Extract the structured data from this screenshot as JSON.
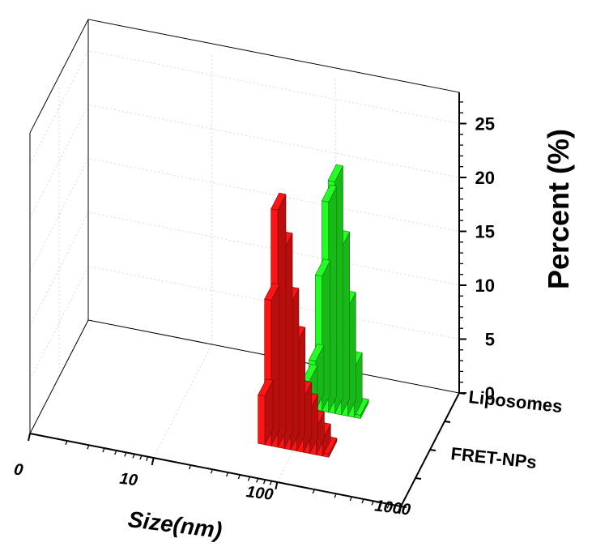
{
  "chart_data": {
    "type": "bar3d",
    "x_axis": {
      "label": "Size(nm)",
      "scale": "log",
      "tick_labels": [
        "0",
        "10",
        "100",
        "1000"
      ],
      "range": [
        1,
        1000
      ]
    },
    "y_axis": {
      "label": "Percent (%)",
      "tick_labels": [
        "0",
        "5",
        "10",
        "15",
        "20",
        "25"
      ],
      "range": [
        0,
        27
      ]
    },
    "z_axis": {
      "tick_labels": [
        "Liposomes",
        "FRET-NPs"
      ]
    },
    "grid": true,
    "series": [
      {
        "name": "FRET-NPs",
        "color": "#ff1414",
        "x": [
          55,
          62,
          70,
          79,
          89,
          100,
          113,
          127,
          143,
          161,
          181
        ],
        "values": [
          4.5,
          13.5,
          22.0,
          18.5,
          13.5,
          10.0,
          5.0,
          4.0,
          2.5,
          1.5,
          0.3
        ]
      },
      {
        "name": "Liposomes",
        "color": "#22ff22",
        "x": [
          85,
          96,
          108,
          122,
          137,
          155,
          174,
          196,
          221
        ],
        "values": [
          2.5,
          4.5,
          12.5,
          19.5,
          21.5,
          15.5,
          10.0,
          4.5,
          0.3
        ]
      }
    ]
  }
}
